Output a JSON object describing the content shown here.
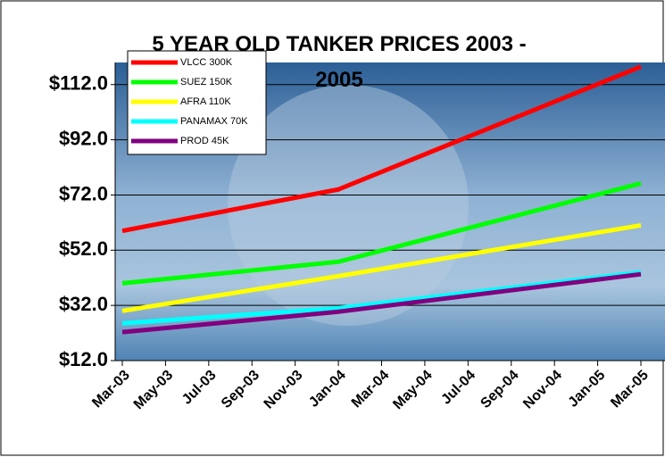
{
  "chart_data": {
    "type": "line",
    "title": "5 YEAR OLD TANKER PRICES 2003 - 2005",
    "x": [
      "Mar-03",
      "Jan-04",
      "Mar-05"
    ],
    "xticks": [
      "Mar-03",
      "May-03",
      "Jul-03",
      "Sep-03",
      "Nov-03",
      "Jan-04",
      "Mar-04",
      "May-04",
      "Jul-04",
      "Sep-04",
      "Nov-04",
      "Jan-05",
      "Mar-05"
    ],
    "series": [
      {
        "name": "VLCC 300K",
        "color": "#ff0000",
        "values": [
          59,
          74,
          118.5
        ]
      },
      {
        "name": "SUEZ 150K",
        "color": "#00ff00",
        "values": [
          40,
          47.8,
          76.2
        ]
      },
      {
        "name": "AFRA 110K",
        "color": "#ffff00",
        "values": [
          30,
          42.6,
          61
        ]
      },
      {
        "name": "PANAMAX 70K",
        "color": "#00ffff",
        "values": [
          25.5,
          31,
          44
        ]
      },
      {
        "name": "PROD 45K",
        "color": "#800080",
        "values": [
          22.3,
          29.7,
          43.3
        ]
      }
    ],
    "ylim": [
      12,
      120
    ],
    "yticks": [
      {
        "value": 12,
        "label": "$12.0"
      },
      {
        "value": 32,
        "label": "$32.0"
      },
      {
        "value": 52,
        "label": "$52.0"
      },
      {
        "value": 72,
        "label": "$72.0"
      },
      {
        "value": 92,
        "label": "$92.0"
      },
      {
        "value": 112,
        "label": "$112.0"
      }
    ],
    "grid": true,
    "legend": "upper left"
  }
}
